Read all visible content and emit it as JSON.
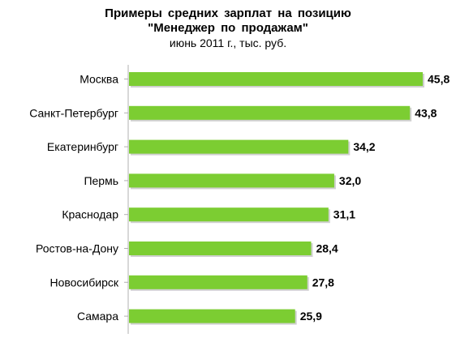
{
  "chart_data": {
    "type": "bar",
    "orientation": "horizontal",
    "title_line1": "Примеры средних зарплат на позицию",
    "title_line2": "\"Менеджер  по продажам\"",
    "subtitle": "июнь 2011 г., тыс. руб.",
    "categories": [
      "Москва",
      "Санкт-Петербург",
      "Екатеринбург",
      "Пермь",
      "Краснодар",
      "Ростов-на-Дону",
      "Новосибирск",
      "Самара"
    ],
    "values": [
      45.8,
      43.8,
      34.2,
      32.0,
      31.1,
      28.4,
      27.8,
      25.9
    ],
    "value_labels": [
      "45,8",
      "43,8",
      "34,2",
      "32,0",
      "31,1",
      "28,4",
      "27,8",
      "25,9"
    ],
    "xlim": [
      0,
      45.8
    ],
    "grid": false,
    "legend": "none",
    "bar_color": "#7ccd32",
    "bar_shadow_color": "#d0d0d0"
  }
}
